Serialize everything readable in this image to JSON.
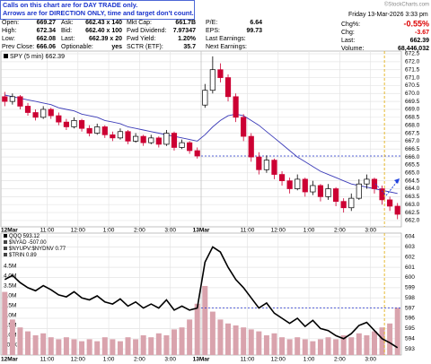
{
  "header": {
    "note": [
      "Calls on this chart are for DAY TRADE only.",
      "Arrows are for DIRECTION ONLY, time and target don't count."
    ],
    "date": "Friday 13-Mar-2026  3:33 pm",
    "logo": "©StockCharts.com",
    "columns": [
      [
        {
          "label": "Open:",
          "value": "669.27"
        },
        {
          "label": "High:",
          "value": "672.34"
        },
        {
          "label": "Low:",
          "value": "662.08"
        },
        {
          "label": "Prev Close:",
          "value": "666.06"
        }
      ],
      [
        {
          "label": "Ask:",
          "value": "662.43 x 140"
        },
        {
          "label": "Bid:",
          "value": "662.40 x 100"
        },
        {
          "label": "Last:",
          "value": "662.39 x 20"
        },
        {
          "label": "Optionable:",
          "value": "yes"
        }
      ],
      [
        {
          "label": "Mkt Cap:",
          "value": "661.7B"
        },
        {
          "label": "Fwd Dividend:",
          "value": "7.97347"
        },
        {
          "label": "Fwd Yield:",
          "value": "1.20%"
        },
        {
          "label": "SCTR (ETF):",
          "value": "35.7"
        }
      ],
      [
        {
          "label": "P/E:",
          "value": "6.64"
        },
        {
          "label": "EPS:",
          "value": "99.73"
        },
        {
          "label": "Last Earnings:"
        },
        {
          "label": "Next Earnings:"
        }
      ],
      [
        {
          "label": "Chg%:",
          "value": "-0.55%"
        },
        {
          "label": "Chg:",
          "value": "-3.67"
        },
        {
          "label": "Last:",
          "value": "662.39"
        },
        {
          "label": "Volume:",
          "value": "68,446,032"
        }
      ]
    ]
  },
  "chart_data": [
    {
      "type": "candlestick",
      "title": "SPY (5 min) 662.39",
      "up_color": "#000000",
      "down_color": "#cc0033",
      "ylim": [
        661.6,
        672.67
      ],
      "yticks": [
        {
          "value": 662,
          "label": "662.0"
        },
        662.5,
        {
          "value": 663,
          "label": "663.0"
        },
        663.5,
        {
          "value": 664,
          "label": "664.0"
        },
        664.5,
        {
          "value": 665,
          "label": "665.0"
        },
        665.5,
        {
          "value": 666,
          "label": "666.0"
        },
        666.5,
        {
          "value": 667,
          "label": "667.0"
        },
        667.5,
        {
          "value": 668,
          "label": "668.0"
        },
        668.5,
        {
          "value": 669,
          "label": "669.0"
        },
        669.5,
        {
          "value": 670,
          "label": "670.0"
        },
        670.5,
        {
          "value": 671,
          "label": "671.0"
        },
        671.5,
        {
          "value": 672,
          "label": "672.0"
        },
        672.5
      ],
      "xticks": [
        {
          "value": 0,
          "label": "12Mar"
        },
        {
          "value": 6,
          "label": "11:00"
        },
        {
          "value": 10,
          "label": "12:00"
        },
        {
          "value": 14,
          "label": "1:00"
        },
        {
          "value": 18,
          "label": "2:00"
        },
        {
          "value": 22,
          "label": "3:00"
        },
        {
          "value": 26,
          "label": "13Mar"
        },
        {
          "value": 32,
          "label": "11:00"
        },
        {
          "value": 36,
          "label": "12:00"
        },
        {
          "value": 40,
          "label": "1:00"
        },
        {
          "value": 44,
          "label": "2:00"
        },
        {
          "value": 48,
          "label": "3:00"
        }
      ],
      "reference_line": 666.06,
      "reference_start": 26,
      "ohlc": [
        [
          669.8,
          670.1,
          669.2,
          669.5
        ],
        [
          669.5,
          670.0,
          669.3,
          669.8
        ],
        [
          669.8,
          669.9,
          669.0,
          669.2
        ],
        [
          669.2,
          669.4,
          668.6,
          668.8
        ],
        [
          668.8,
          669.0,
          668.3,
          668.5
        ],
        [
          668.5,
          669.2,
          668.4,
          669.0
        ],
        [
          669.0,
          669.1,
          668.4,
          668.6
        ],
        [
          668.6,
          668.8,
          668.0,
          668.2
        ],
        [
          668.2,
          668.4,
          667.7,
          667.9
        ],
        [
          667.9,
          668.5,
          667.8,
          668.3
        ],
        [
          668.3,
          668.4,
          667.6,
          667.8
        ],
        [
          667.8,
          668.0,
          667.3,
          667.5
        ],
        [
          667.5,
          668.1,
          667.4,
          667.9
        ],
        [
          667.9,
          668.0,
          667.2,
          667.4
        ],
        [
          667.4,
          667.6,
          667.0,
          667.2
        ],
        [
          667.2,
          667.8,
          667.1,
          667.6
        ],
        [
          667.6,
          667.7,
          666.8,
          667.0
        ],
        [
          667.0,
          667.5,
          666.9,
          667.3
        ],
        [
          667.3,
          667.4,
          666.7,
          666.9
        ],
        [
          666.9,
          667.4,
          666.8,
          667.2
        ],
        [
          667.2,
          667.3,
          666.6,
          666.8
        ],
        [
          666.8,
          667.7,
          666.7,
          667.5
        ],
        [
          667.5,
          667.6,
          666.4,
          666.6
        ],
        [
          666.6,
          667.1,
          666.5,
          666.9
        ],
        [
          666.9,
          667.0,
          666.2,
          666.4
        ],
        [
          666.4,
          666.6,
          665.9,
          666.06
        ],
        [
          669.27,
          670.6,
          669.1,
          670.2
        ],
        [
          670.2,
          672.34,
          670.0,
          671.5
        ],
        [
          671.5,
          671.9,
          670.7,
          671.0
        ],
        [
          671.0,
          671.2,
          669.5,
          669.8
        ],
        [
          669.8,
          670.0,
          668.2,
          668.5
        ],
        [
          668.5,
          668.7,
          667.0,
          667.3
        ],
        [
          667.3,
          667.5,
          665.7,
          666.0
        ],
        [
          666.0,
          666.3,
          664.9,
          665.2
        ],
        [
          665.2,
          666.1,
          665.0,
          665.8
        ],
        [
          665.8,
          665.9,
          664.6,
          664.9
        ],
        [
          664.9,
          665.1,
          664.2,
          664.5
        ],
        [
          664.5,
          664.7,
          663.7,
          664.0
        ],
        [
          664.0,
          664.9,
          663.9,
          664.6
        ],
        [
          664.6,
          664.7,
          663.5,
          663.8
        ],
        [
          663.8,
          664.5,
          663.6,
          664.2
        ],
        [
          664.2,
          664.3,
          663.2,
          663.5
        ],
        [
          663.5,
          664.3,
          663.3,
          664.0
        ],
        [
          664.0,
          664.1,
          662.9,
          663.2
        ],
        [
          663.2,
          663.4,
          662.5,
          662.8
        ],
        [
          662.8,
          663.7,
          662.6,
          663.4
        ],
        [
          663.4,
          664.6,
          663.3,
          664.3
        ],
        [
          664.3,
          664.9,
          664.0,
          664.6
        ],
        [
          664.6,
          664.7,
          663.7,
          664.0
        ],
        [
          664.0,
          664.2,
          663.0,
          663.3
        ],
        [
          663.3,
          663.5,
          662.6,
          662.9
        ],
        [
          662.9,
          663.1,
          662.08,
          662.39
        ]
      ],
      "ma": {
        "color": "#3b3bb8",
        "values": [
          669.9,
          669.8,
          669.7,
          669.6,
          669.5,
          669.4,
          669.3,
          669.1,
          669.0,
          668.9,
          668.7,
          668.6,
          668.5,
          668.3,
          668.2,
          668.1,
          667.9,
          667.8,
          667.7,
          667.6,
          667.5,
          667.4,
          667.3,
          667.2,
          667.1,
          667.0,
          667.4,
          667.9,
          668.3,
          668.6,
          668.7,
          668.6,
          668.3,
          668.0,
          667.6,
          667.2,
          666.8,
          666.4,
          666.0,
          665.7,
          665.4,
          665.1,
          664.9,
          664.7,
          664.5,
          664.3,
          664.2,
          664.1,
          664.0,
          663.9,
          663.8,
          663.7
        ]
      }
    },
    {
      "type": "line",
      "legend": [
        "QQQ 593.12",
        "$NYAD -507.00",
        "$NYUPV:$NYDNV 0.77",
        "$TRIN 0.89"
      ],
      "ylim": [
        592.4,
        604.35
      ],
      "yticks": [
        593,
        594,
        595,
        596,
        597,
        598,
        599,
        600,
        601,
        602,
        603,
        604
      ],
      "y2lim": [
        0,
        6180000
      ],
      "y2ticks": [
        {
          "value": 500000,
          "label": "500K"
        },
        {
          "value": 1000000,
          "label": "1.0M"
        },
        {
          "value": 1500000,
          "label": "1.5M"
        },
        {
          "value": 2000000,
          "label": "2.0M"
        },
        {
          "value": 2500000,
          "label": "2.5M"
        },
        {
          "value": 3000000,
          "label": "3.0M"
        },
        {
          "value": 3500000,
          "label": "3.5M"
        },
        {
          "value": 4000000,
          "label": "4.0M"
        },
        {
          "value": 4500000,
          "label": "4.5M"
        }
      ],
      "xticks": [
        {
          "value": 0,
          "label": "12Mar"
        },
        {
          "value": 6,
          "label": "11:00"
        },
        {
          "value": 10,
          "label": "12:00"
        },
        {
          "value": 14,
          "label": "1:00"
        },
        {
          "value": 18,
          "label": "2:00"
        },
        {
          "value": 22,
          "label": "3:00"
        },
        {
          "value": 26,
          "label": "13Mar"
        },
        {
          "value": 32,
          "label": "11:00"
        },
        {
          "value": 36,
          "label": "12:00"
        },
        {
          "value": 40,
          "label": "1:00"
        },
        {
          "value": 44,
          "label": "2:00"
        },
        {
          "value": 48,
          "label": "3:00"
        }
      ],
      "reference_line": 597,
      "reference_start": 26,
      "series": [
        {
          "color": "#000000",
          "values": [
            599.8,
            600.2,
            599.5,
            599.0,
            598.7,
            599.2,
            598.8,
            598.3,
            598.1,
            598.6,
            598.0,
            597.8,
            598.2,
            597.6,
            597.4,
            597.9,
            597.2,
            597.6,
            597.0,
            597.4,
            597.0,
            597.8,
            596.8,
            597.2,
            596.8,
            597.0,
            601.5,
            603.0,
            602.5,
            601.0,
            599.8,
            599.0,
            598.0,
            597.0,
            597.5,
            596.5,
            596.0,
            595.5,
            596.0,
            595.2,
            595.8,
            595.0,
            594.8,
            594.3,
            594.0,
            594.5,
            595.3,
            595.6,
            594.8,
            594.0,
            593.6,
            593.12
          ]
        },
        {
          "color": "#d9a3ad",
          "axis": "y2",
          "values": [
            3200000,
            1800000,
            1400000,
            1200000,
            1000000,
            1100000,
            900000,
            800000,
            900000,
            800000,
            700000,
            800000,
            700000,
            900000,
            800000,
            700000,
            900000,
            800000,
            1000000,
            900000,
            1100000,
            1000000,
            1300000,
            1400000,
            1800000,
            2600000,
            3500000,
            2200000,
            1800000,
            1600000,
            1500000,
            1400000,
            1300000,
            1200000,
            1000000,
            1100000,
            900000,
            800000,
            900000,
            800000,
            700000,
            800000,
            900000,
            800000,
            1000000,
            900000,
            1100000,
            1000000,
            1200000,
            1400000,
            1600000,
            2400000
          ]
        }
      ]
    }
  ]
}
